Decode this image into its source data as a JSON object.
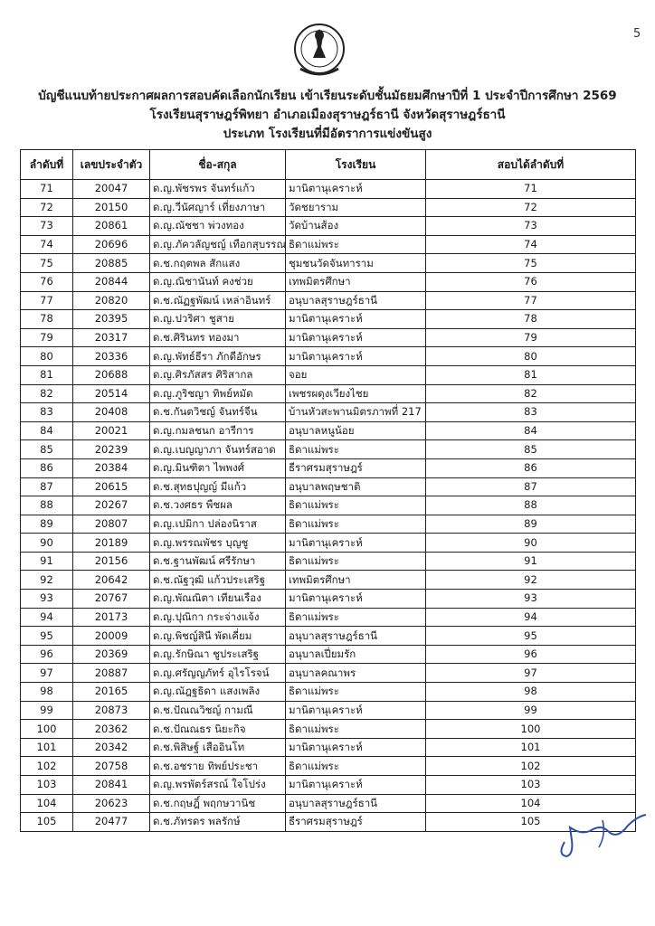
{
  "page_number": "5",
  "title_lines": [
    "บัญชีแนบท้ายประกาศผลการสอบคัดเลือกนักเรียน เข้าเรียนระดับชั้นมัธยมศึกษาปีที่ 1 ประจำปีการศึกษา 2569",
    "โรงเรียนสุราษฎร์พิทยา อำเภอเมืองสุราษฎร์ธานี  จังหวัดสุราษฎร์ธานี",
    "ประเภท โรงเรียนที่มีอัตราการแข่งขันสูง"
  ],
  "table": {
    "headers": [
      "ลำดับที่",
      "เลขประจำตัว",
      "ชื่อ-สกุล",
      "โรงเรียน",
      "สอบได้ลำดับที่"
    ],
    "rows": [
      [
        "71",
        "20047",
        "ด.ญ.พัชรพร จันทร์แก้ว",
        "มานิตานุเคราะห์",
        "71"
      ],
      [
        "72",
        "20150",
        "ด.ญ.วีนัศญาร์ เที่ยงภาษา",
        "วัดชยาราม",
        "72"
      ],
      [
        "73",
        "20861",
        "ด.ญ.ณัชชา พ่วงทอง",
        "วัดบ้านส้อง",
        "73"
      ],
      [
        "74",
        "20696",
        "ด.ญ.ภัควลัญชญ์ เทือกสุบรรณ",
        "ธิดาแม่พระ",
        "74"
      ],
      [
        "75",
        "20885",
        "ด.ช.กฤตพล สักแสง",
        "ชุมชนวัดจันทาราม",
        "75"
      ],
      [
        "76",
        "20844",
        "ด.ญ.ณิชานันท์ คงช่วย",
        "เทพมิตรศึกษา",
        "76"
      ],
      [
        "77",
        "20820",
        "ด.ช.ณัฏฐพัฒน์ เหล่าอินทร์",
        "อนุบาลสุราษฎร์ธานี",
        "77"
      ],
      [
        "78",
        "20395",
        "ด.ญ.ปวริศา ชูสาย",
        "มานิตานุเคราะห์",
        "78"
      ],
      [
        "79",
        "20317",
        "ด.ช.ศิรินทร ทองมา",
        "มานิตานุเคราะห์",
        "79"
      ],
      [
        "80",
        "20336",
        "ด.ญ.พัทธ์ธีรา ภักดีอักษร",
        "มานิตานุเคราะห์",
        "80"
      ],
      [
        "81",
        "20688",
        "ด.ญ.ศิรภัสสร ศิริสากล",
        "จอย",
        "81"
      ],
      [
        "82",
        "20514",
        "ด.ญ.ภูริชญา ทิพย์หมัด",
        "เพชรผดุงเวียงไชย",
        "82"
      ],
      [
        "83",
        "20408",
        "ด.ช.กันตวิชญ์ จันทร์จีน",
        "บ้านหัวสะพานมิตรภาพที่ 217",
        "83"
      ],
      [
        "84",
        "20021",
        "ด.ญ.กมลชนก อารีการ",
        "อนุบาลหนูน้อย",
        "84"
      ],
      [
        "85",
        "20239",
        "ด.ญ.เบญญาภา จันทร์สอาด",
        "ธิดาแม่พระ",
        "85"
      ],
      [
        "86",
        "20384",
        "ด.ญ.มินฑิตา ไพพงศ์",
        "ธีราศรมสุราษฎร์",
        "86"
      ],
      [
        "87",
        "20615",
        "ด.ช.สุทธปุญญ์ มีแก้ว",
        "อนุบาลพฤษชาติ",
        "87"
      ],
      [
        "88",
        "20267",
        "ด.ช.วงศธร พืชผล",
        "ธิดาแม่พระ",
        "88"
      ],
      [
        "89",
        "20807",
        "ด.ญ.เปมิกา ปล่องนิราส",
        "ธิดาแม่พระ",
        "89"
      ],
      [
        "90",
        "20189",
        "ด.ญ.พรรณพัชร บุญชู",
        "มานิตานุเคราะห์",
        "90"
      ],
      [
        "91",
        "20156",
        "ด.ช.ฐานพัฒน์ ศรีรักษา",
        "ธิดาแม่พระ",
        "91"
      ],
      [
        "92",
        "20642",
        "ด.ช.ณัฐวุฒิ แก้วประเสริฐ",
        "เทพมิตรศึกษา",
        "92"
      ],
      [
        "93",
        "20767",
        "ด.ญ.พัณณิตา เทียนเรือง",
        "มานิตานุเคราะห์",
        "93"
      ],
      [
        "94",
        "20173",
        "ด.ญ.ปุณิกา กระจ่างแจ้ง",
        "ธิดาแม่พระ",
        "94"
      ],
      [
        "95",
        "20009",
        "ด.ญ.พิชญ์สินี พัดเคี่ยม",
        "อนุบาลสุราษฎร์ธานี",
        "95"
      ],
      [
        "96",
        "20369",
        "ด.ญ.รักษิณา ชูประเสริฐ",
        "อนุบาลเปี่ยมรัก",
        "96"
      ],
      [
        "97",
        "20887",
        "ด.ญ.ศรัญญภัทร์ อุไรโรจน์",
        "อนุบาลคณาพร",
        "97"
      ],
      [
        "98",
        "20165",
        "ด.ญ.ณัฎฐธิดา แสงเพลิง",
        "ธิดาแม่พระ",
        "98"
      ],
      [
        "99",
        "20873",
        "ด.ช.ปัณณวิชญ์ กามณี",
        "มานิตานุเคราะห์",
        "99"
      ],
      [
        "100",
        "20362",
        "ด.ช.ปัณณธร นิยะกิจ",
        "ธิดาแม่พระ",
        "100"
      ],
      [
        "101",
        "20342",
        "ด.ช.พิสิษฐ์ เสืออินโท",
        "มานิตานุเคราะห์",
        "101"
      ],
      [
        "102",
        "20758",
        "ด.ช.อชราย ทิพย์ประชา",
        "ธิดาแม่พระ",
        "102"
      ],
      [
        "103",
        "20841",
        "ด.ญ.พรพัตร์สรณ์ ใจโปร่ง",
        "มานิตานุเคราะห์",
        "103"
      ],
      [
        "104",
        "20623",
        "ด.ช.กฤษฎิ์ พฤกษวานิช",
        "อนุบาลสุราษฎร์ธานี",
        "104"
      ],
      [
        "105",
        "20477",
        "ด.ช.ภัทรดร พลรักษ์",
        "ธีราศรมสุราษฎร์",
        "105"
      ]
    ]
  },
  "signature_color": "#2a4fb0"
}
